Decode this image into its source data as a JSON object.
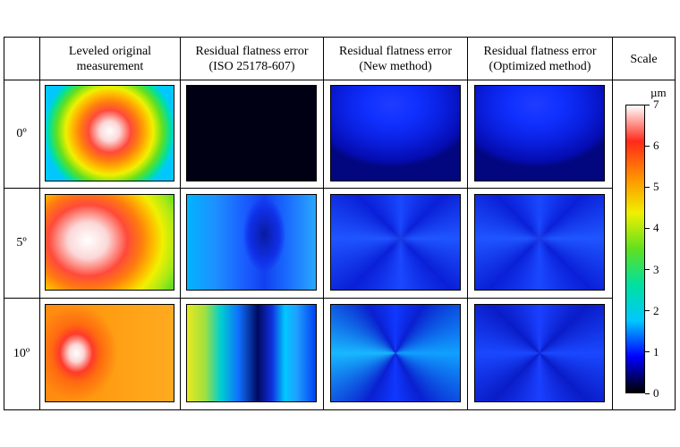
{
  "headers": {
    "col1": [
      "Leveled original",
      "measurement"
    ],
    "col2": [
      "Residual flatness error",
      "(ISO 25178-607)"
    ],
    "col3": [
      "Residual flatness error",
      "(New method)"
    ],
    "col4": [
      "Residual flatness error",
      "(Optimized method)"
    ],
    "scale": "Scale"
  },
  "rows": [
    "0º",
    "5º",
    "10º"
  ],
  "colorbar": {
    "unit": "µm",
    "ticks": [
      "0",
      "1",
      "2",
      "3",
      "4",
      "5",
      "6",
      "7"
    ],
    "min": 0,
    "max": 7,
    "colormap": [
      "#000000",
      "#0000ff",
      "#00c8ff",
      "#00e0a0",
      "#60e020",
      "#f0f000",
      "#ff9000",
      "#ff2a1a",
      "#ffffff"
    ]
  }
}
